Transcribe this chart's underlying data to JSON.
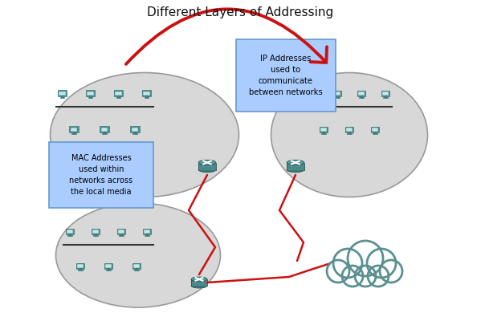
{
  "title": "Different Layers of Addressing",
  "title_fontsize": 11,
  "background_color": "#ffffff",
  "ellipse_color": "#d8d8d8",
  "ellipse_edge": "#999999",
  "router_color": "#4a8a8a",
  "router_top_color": "#5a9a9a",
  "computer_body_color": "#4a9a9a",
  "computer_screen_color": "#c8e8e8",
  "line_color": "#333333",
  "red_color": "#cc1111",
  "ip_box_color": "#aaccff",
  "ip_box_edge": "#6699cc",
  "mac_box_color": "#aaccff",
  "mac_box_edge": "#6699cc",
  "ip_text": "IP Addresses\nused to\ncommunicate\nbetween networks",
  "mac_text": "MAC Addresses\nused within\nnetworks across\nthe local media",
  "cloud_fill": "#ffffff",
  "cloud_edge": "#5a9090",
  "cloud_lw": 2.0
}
